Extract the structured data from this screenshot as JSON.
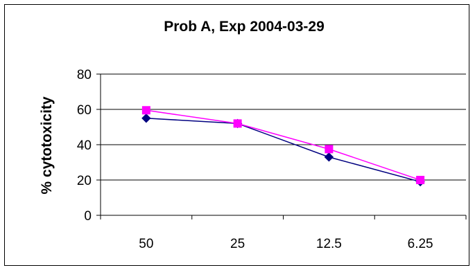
{
  "chart_data": {
    "type": "line",
    "title": "Prob A, Exp 2004-03-29",
    "xlabel": "",
    "ylabel": "% cytotoxicity",
    "categories": [
      "50",
      "25",
      "12.5",
      "6.25"
    ],
    "ylim": [
      0,
      80
    ],
    "yticks": [
      0,
      20,
      40,
      60,
      80
    ],
    "grid": "horizontal",
    "legend": "none",
    "series": [
      {
        "values": [
          55,
          52,
          33,
          19
        ],
        "color": "#000080",
        "marker": "diamond"
      },
      {
        "values": [
          59.5,
          52,
          37.5,
          20
        ],
        "color": "#FF00FF",
        "marker": "square"
      }
    ]
  }
}
